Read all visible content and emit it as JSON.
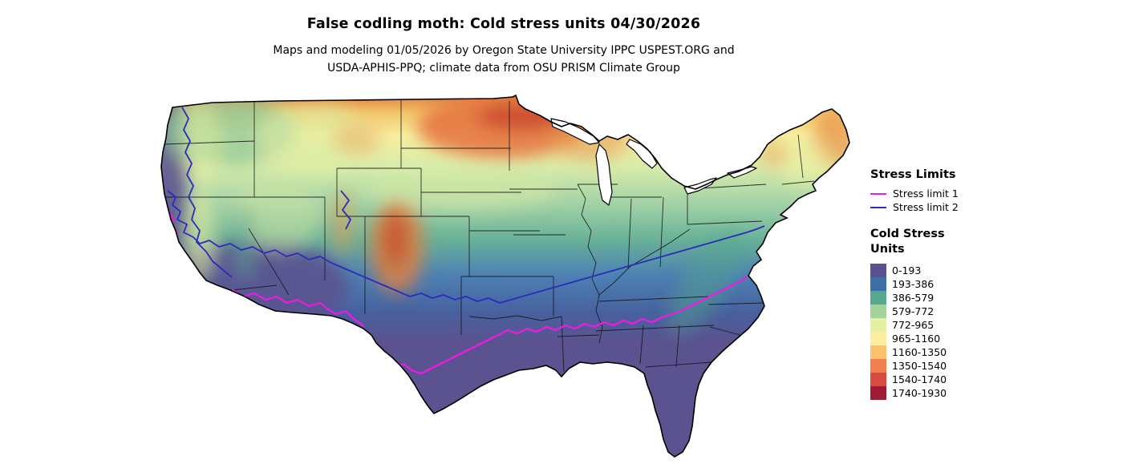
{
  "title": "False codling moth: Cold stress units 04/30/2026",
  "subtitle_line1": "Maps and modeling 01/05/2026 by Oregon State University IPPC USPEST.ORG and",
  "subtitle_line2": "USDA-APHIS-PPQ; climate data from OSU PRISM Climate Group",
  "legend": {
    "stress_limits_title": "Stress Limits",
    "stress_limits": [
      {
        "label": "Stress limit 1",
        "color": "#f318e6"
      },
      {
        "label": "Stress limit 2",
        "color": "#2c2cbb"
      }
    ],
    "cold_stress_title_line1": "Cold Stress",
    "cold_stress_title_line2": "Units",
    "bins": [
      {
        "label": "0-193",
        "color": "#5a5191"
      },
      {
        "label": "193-386",
        "color": "#3d6ea5"
      },
      {
        "label": "386-579",
        "color": "#57a98e"
      },
      {
        "label": "579-772",
        "color": "#a3d39c"
      },
      {
        "label": "772-965",
        "color": "#e4f1a2"
      },
      {
        "label": "965-1160",
        "color": "#fdee9f"
      },
      {
        "label": "1160-1350",
        "color": "#fbc16d"
      },
      {
        "label": "1350-1540",
        "color": "#f0814e"
      },
      {
        "label": "1540-1740",
        "color": "#d94a41"
      },
      {
        "label": "1740-1930",
        "color": "#a01c35"
      }
    ]
  },
  "chart_data": {
    "type": "heatmap",
    "title": "False codling moth: Cold stress units 04/30/2026",
    "region": "Continental United States",
    "scale_name": "Cold Stress Units",
    "scale_bins": [
      "0-193",
      "193-386",
      "386-579",
      "579-772",
      "772-965",
      "965-1160",
      "1160-1350",
      "1350-1540",
      "1540-1740",
      "1740-1930"
    ],
    "overlay_lines": [
      "Stress limit 1",
      "Stress limit 2"
    ],
    "legend_position": "right"
  }
}
